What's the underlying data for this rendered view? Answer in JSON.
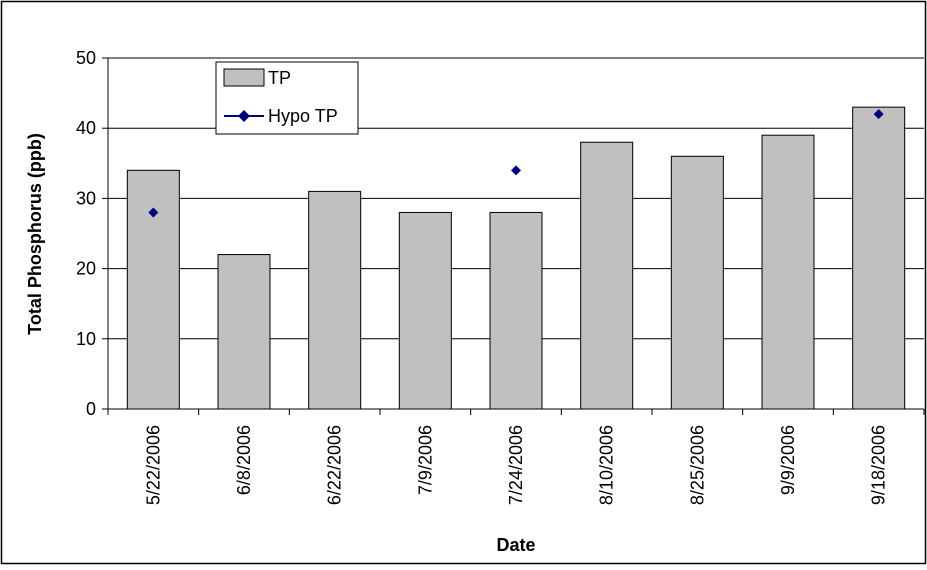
{
  "chart_data": {
    "type": "bar",
    "title": "",
    "xlabel": "Date",
    "ylabel": "Total Phosphorus (ppb)",
    "categories": [
      "5/22/2006",
      "6/8/2006",
      "6/22/2006",
      "7/9/2006",
      "7/24/2006",
      "8/10/2006",
      "8/25/2006",
      "9/9/2006",
      "9/18/2006"
    ],
    "series": [
      {
        "name": "TP",
        "type": "bar",
        "color": "#c0c0c0",
        "values": [
          34,
          22,
          31,
          28,
          28,
          38,
          36,
          39,
          43
        ]
      },
      {
        "name": "Hypo TP",
        "type": "scatter",
        "color": "#000080",
        "values": [
          28,
          null,
          null,
          null,
          34,
          null,
          null,
          null,
          42
        ]
      }
    ],
    "ylim": [
      0,
      50
    ],
    "yticks": [
      0,
      10,
      20,
      30,
      40,
      50
    ],
    "grid": true,
    "legend": "top-left"
  }
}
